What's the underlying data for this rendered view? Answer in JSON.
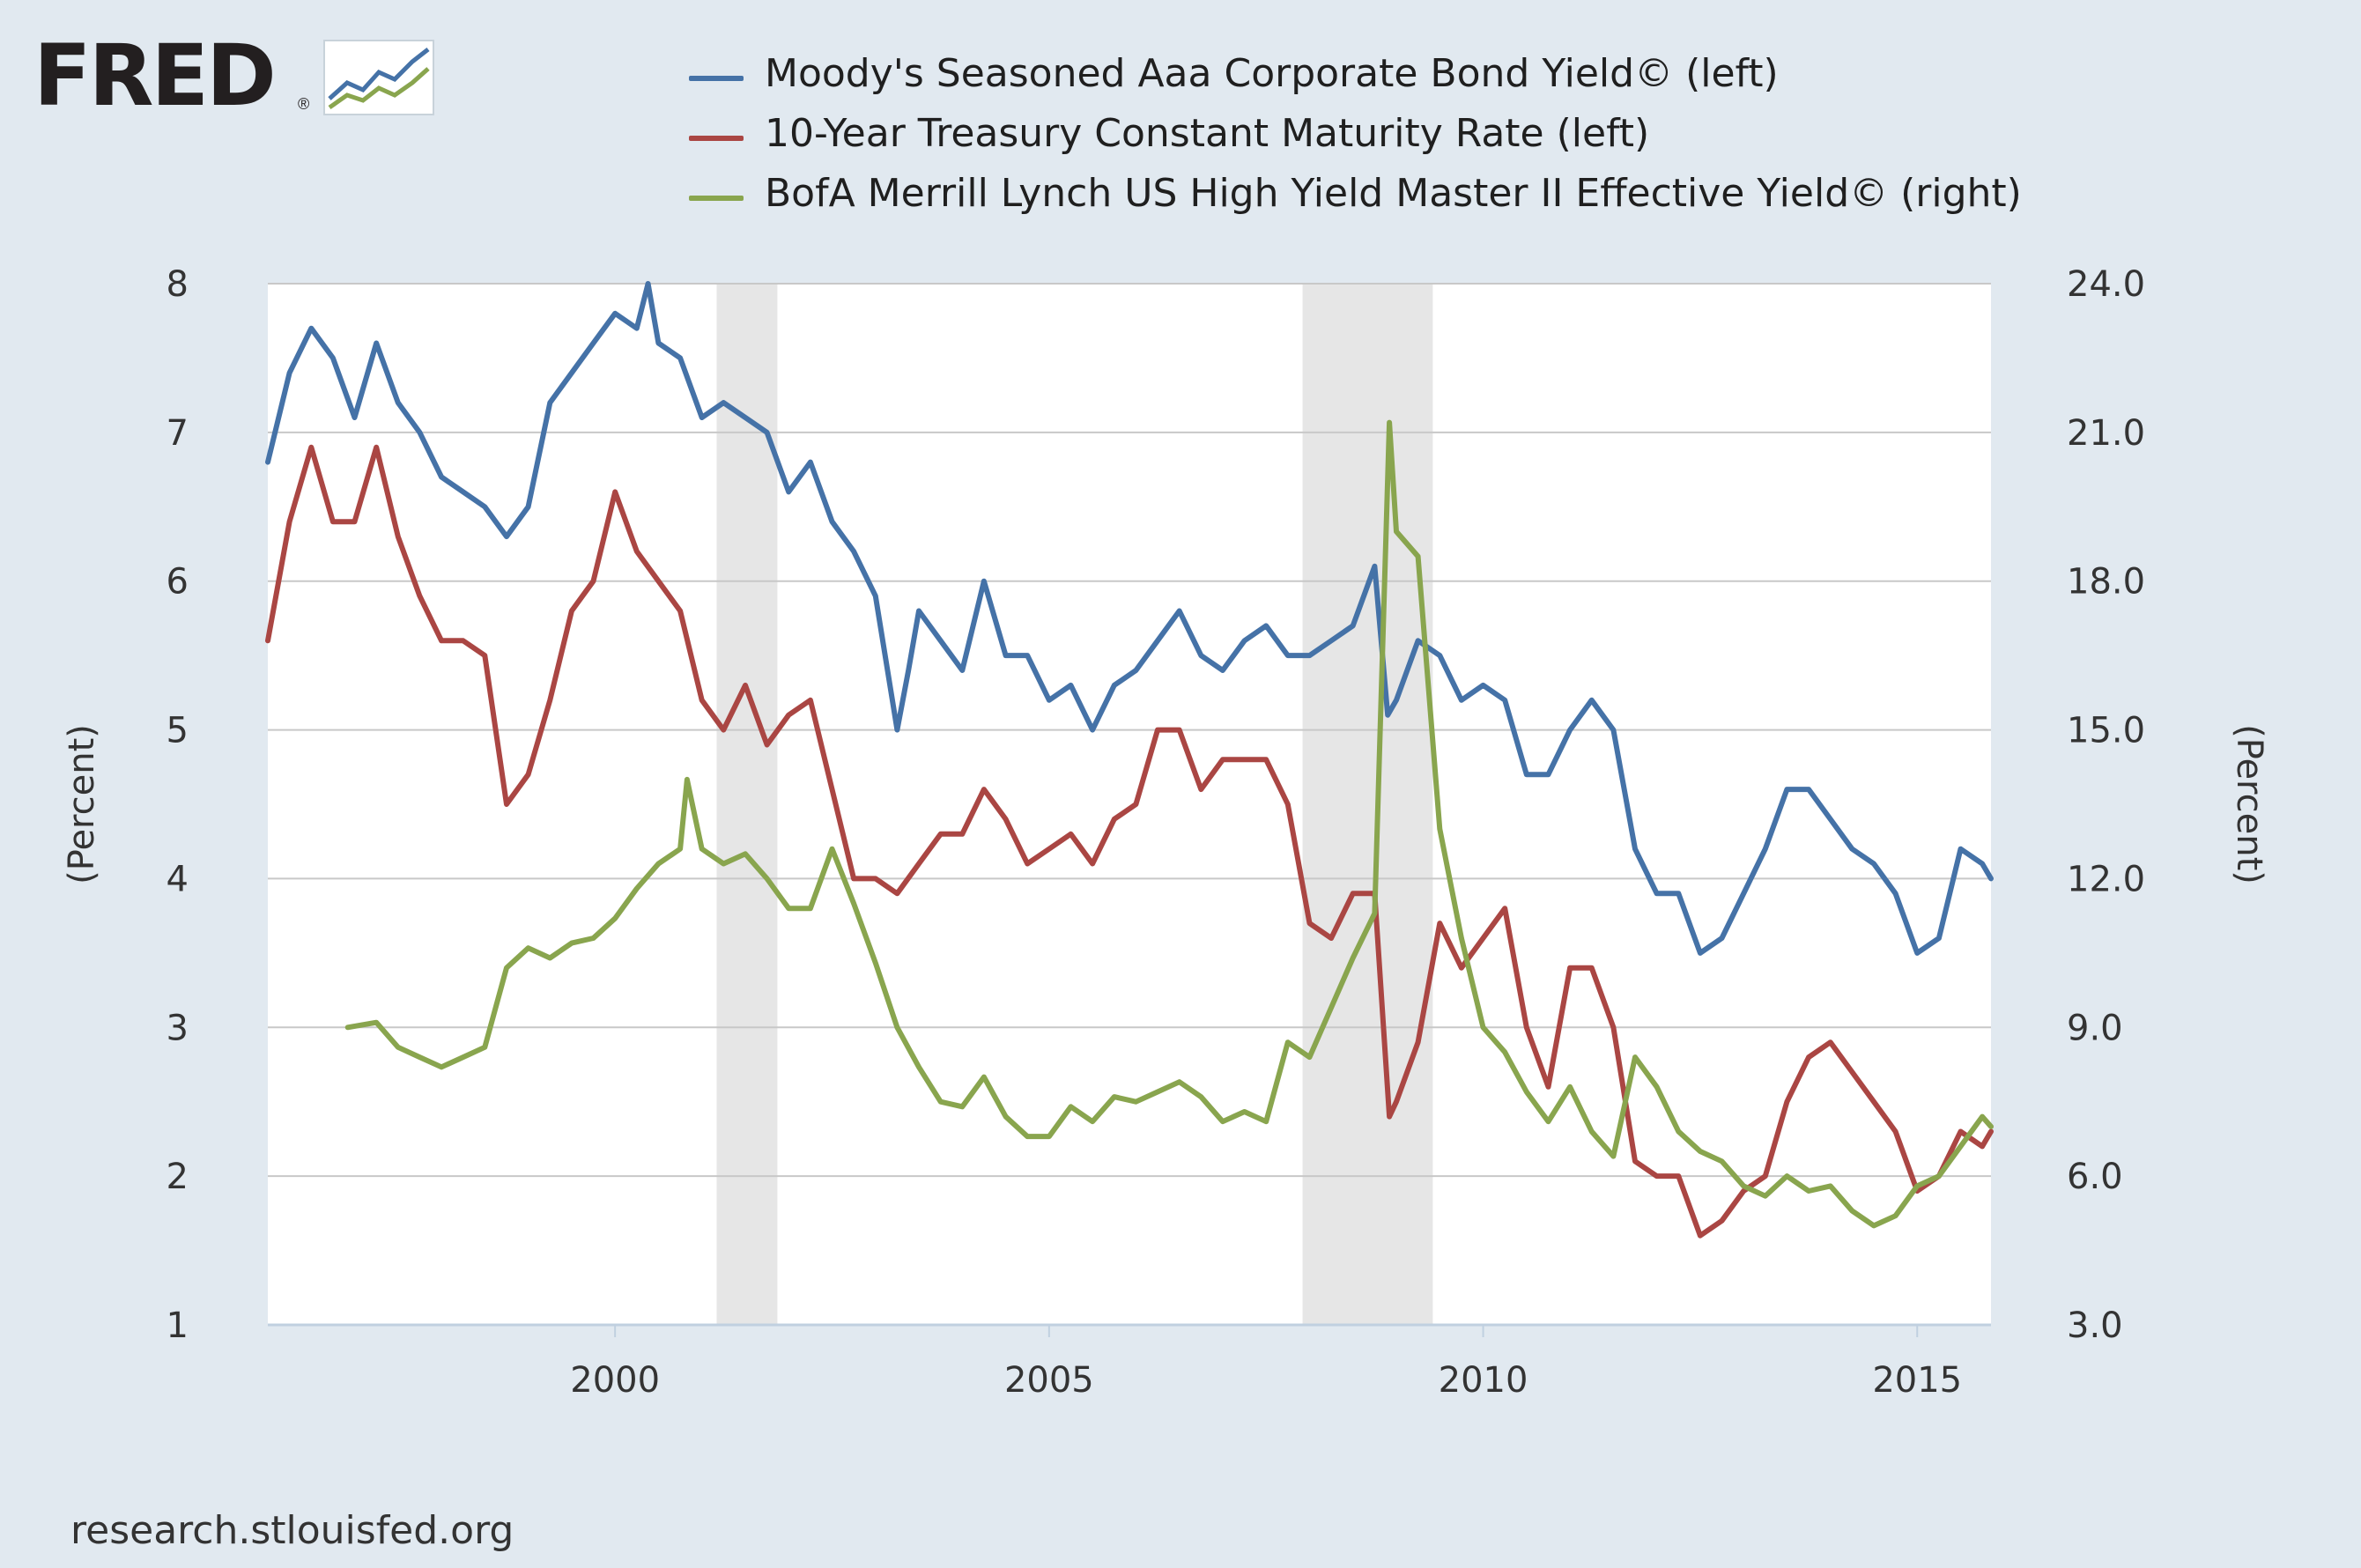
{
  "brand": {
    "logo_text": "FRED",
    "registered_mark": "®",
    "logo": "fred-logo"
  },
  "source": "research.stlouisfed.org",
  "chart_data": {
    "type": "line",
    "left_axis": {
      "title": "(Percent)",
      "min": 1,
      "max": 8,
      "ticks": [
        1,
        2,
        3,
        4,
        5,
        6,
        7,
        8
      ],
      "tick_labels": [
        "1",
        "2",
        "3",
        "4",
        "5",
        "6",
        "7",
        "8"
      ]
    },
    "right_axis": {
      "title": "(Percent)",
      "min": 3.0,
      "max": 24.0,
      "ticks": [
        3,
        6,
        9,
        12,
        15,
        18,
        21,
        24
      ],
      "tick_labels": [
        "3.0",
        "6.0",
        "9.0",
        "12.0",
        "15.0",
        "18.0",
        "21.0",
        "24.0"
      ]
    },
    "x_axis": {
      "min": 1996.0,
      "max": 2015.85,
      "ticks": [
        2000,
        2005,
        2010,
        2015
      ],
      "tick_labels": [
        "2000",
        "2005",
        "2010",
        "2015"
      ]
    },
    "grid": true,
    "legend_position": "top",
    "recessions": [
      {
        "start": 2001.17,
        "end": 2001.87
      },
      {
        "start": 2007.92,
        "end": 2009.42
      }
    ],
    "series": [
      {
        "name": "Moody's Seasoned Aaa Corporate Bond Yield© (left)",
        "axis": "left",
        "color": "#4572a7",
        "x": [
          1996.0,
          1996.25,
          1996.5,
          1996.75,
          1997.0,
          1997.25,
          1997.5,
          1997.75,
          1998.0,
          1998.25,
          1998.5,
          1998.75,
          1999.0,
          1999.25,
          1999.5,
          1999.75,
          2000.0,
          2000.25,
          2000.38,
          2000.5,
          2000.75,
          2001.0,
          2001.25,
          2001.5,
          2001.75,
          2002.0,
          2002.25,
          2002.5,
          2002.75,
          2003.0,
          2003.25,
          2003.38,
          2003.5,
          2003.75,
          2004.0,
          2004.25,
          2004.5,
          2004.75,
          2005.0,
          2005.25,
          2005.5,
          2005.75,
          2006.0,
          2006.25,
          2006.5,
          2006.75,
          2007.0,
          2007.25,
          2007.5,
          2007.75,
          2008.0,
          2008.25,
          2008.5,
          2008.75,
          2008.9,
          2009.0,
          2009.25,
          2009.5,
          2009.75,
          2010.0,
          2010.25,
          2010.5,
          2010.75,
          2011.0,
          2011.25,
          2011.5,
          2011.75,
          2012.0,
          2012.25,
          2012.5,
          2012.75,
          2013.0,
          2013.25,
          2013.5,
          2013.75,
          2014.0,
          2014.25,
          2014.5,
          2014.75,
          2015.0,
          2015.25,
          2015.5,
          2015.75,
          2015.85
        ],
        "y": [
          6.8,
          7.4,
          7.7,
          7.5,
          7.1,
          7.6,
          7.2,
          7.0,
          6.7,
          6.6,
          6.5,
          6.3,
          6.5,
          7.2,
          7.4,
          7.6,
          7.8,
          7.7,
          8.0,
          7.6,
          7.5,
          7.1,
          7.2,
          7.1,
          7.0,
          6.6,
          6.8,
          6.4,
          6.2,
          5.9,
          5.0,
          5.4,
          5.8,
          5.6,
          5.4,
          6.0,
          5.5,
          5.5,
          5.2,
          5.3,
          5.0,
          5.3,
          5.4,
          5.6,
          5.8,
          5.5,
          5.4,
          5.6,
          5.7,
          5.5,
          5.5,
          5.6,
          5.7,
          6.1,
          5.1,
          5.2,
          5.6,
          5.5,
          5.2,
          5.3,
          5.2,
          4.7,
          4.7,
          5.0,
          5.2,
          5.0,
          4.2,
          3.9,
          3.9,
          3.5,
          3.6,
          3.9,
          4.2,
          4.6,
          4.6,
          4.4,
          4.2,
          4.1,
          3.9,
          3.5,
          3.6,
          4.2,
          4.1,
          4.0
        ]
      },
      {
        "name": "10-Year Treasury Constant Maturity Rate (left)",
        "axis": "left",
        "color": "#aa4643",
        "x": [
          1996.0,
          1996.25,
          1996.5,
          1996.75,
          1997.0,
          1997.25,
          1997.5,
          1997.75,
          1998.0,
          1998.25,
          1998.5,
          1998.75,
          1999.0,
          1999.25,
          1999.5,
          1999.75,
          2000.0,
          2000.25,
          2000.5,
          2000.75,
          2001.0,
          2001.25,
          2001.5,
          2001.75,
          2002.0,
          2002.25,
          2002.5,
          2002.75,
          2003.0,
          2003.25,
          2003.5,
          2003.75,
          2004.0,
          2004.25,
          2004.5,
          2004.75,
          2005.0,
          2005.25,
          2005.5,
          2005.75,
          2006.0,
          2006.25,
          2006.5,
          2006.75,
          2007.0,
          2007.25,
          2007.5,
          2007.75,
          2008.0,
          2008.25,
          2008.5,
          2008.75,
          2008.92,
          2009.0,
          2009.25,
          2009.5,
          2009.75,
          2010.0,
          2010.25,
          2010.5,
          2010.75,
          2011.0,
          2011.25,
          2011.5,
          2011.75,
          2012.0,
          2012.25,
          2012.5,
          2012.75,
          2013.0,
          2013.25,
          2013.5,
          2013.75,
          2014.0,
          2014.25,
          2014.5,
          2014.75,
          2015.0,
          2015.25,
          2015.5,
          2015.75,
          2015.85
        ],
        "y": [
          5.6,
          6.4,
          6.9,
          6.4,
          6.4,
          6.9,
          6.3,
          5.9,
          5.6,
          5.6,
          5.5,
          4.5,
          4.7,
          5.2,
          5.8,
          6.0,
          6.6,
          6.2,
          6.0,
          5.8,
          5.2,
          5.0,
          5.3,
          4.9,
          5.1,
          5.2,
          4.6,
          4.0,
          4.0,
          3.9,
          4.1,
          4.3,
          4.3,
          4.6,
          4.4,
          4.1,
          4.2,
          4.3,
          4.1,
          4.4,
          4.5,
          5.0,
          5.0,
          4.6,
          4.8,
          4.8,
          4.8,
          4.5,
          3.7,
          3.6,
          3.9,
          3.9,
          2.4,
          2.5,
          2.9,
          3.7,
          3.4,
          3.6,
          3.8,
          3.0,
          2.6,
          3.4,
          3.4,
          3.0,
          2.1,
          2.0,
          2.0,
          1.6,
          1.7,
          1.9,
          2.0,
          2.5,
          2.8,
          2.9,
          2.7,
          2.5,
          2.3,
          1.9,
          2.0,
          2.3,
          2.2,
          2.3
        ]
      },
      {
        "name": "BofA Merrill Lynch US High Yield Master II Effective Yield© (right)",
        "axis": "right",
        "color": "#89a54e",
        "x": [
          1996.92,
          1997.25,
          1997.5,
          1997.75,
          1998.0,
          1998.25,
          1998.5,
          1998.75,
          1999.0,
          1999.25,
          1999.5,
          1999.75,
          2000.0,
          2000.25,
          2000.5,
          2000.75,
          2000.83,
          2001.0,
          2001.25,
          2001.5,
          2001.75,
          2002.0,
          2002.25,
          2002.5,
          2002.75,
          2003.0,
          2003.25,
          2003.5,
          2003.75,
          2004.0,
          2004.25,
          2004.5,
          2004.75,
          2005.0,
          2005.25,
          2005.5,
          2005.75,
          2006.0,
          2006.25,
          2006.5,
          2006.75,
          2007.0,
          2007.25,
          2007.5,
          2007.75,
          2008.0,
          2008.25,
          2008.5,
          2008.75,
          2008.92,
          2009.0,
          2009.25,
          2009.5,
          2009.75,
          2010.0,
          2010.25,
          2010.5,
          2010.75,
          2011.0,
          2011.25,
          2011.5,
          2011.75,
          2012.0,
          2012.25,
          2012.5,
          2012.75,
          2013.0,
          2013.25,
          2013.5,
          2013.75,
          2014.0,
          2014.25,
          2014.5,
          2014.75,
          2015.0,
          2015.25,
          2015.5,
          2015.75,
          2015.85
        ],
        "y": [
          9.0,
          9.1,
          8.6,
          8.4,
          8.2,
          8.4,
          8.6,
          10.2,
          10.6,
          10.4,
          10.7,
          10.8,
          11.2,
          11.8,
          12.3,
          12.6,
          14.0,
          12.6,
          12.3,
          12.5,
          12.0,
          11.4,
          11.4,
          12.6,
          11.5,
          10.3,
          9.0,
          8.2,
          7.5,
          7.4,
          8.0,
          7.2,
          6.8,
          6.8,
          7.4,
          7.1,
          7.6,
          7.5,
          7.7,
          7.9,
          7.6,
          7.1,
          7.3,
          7.1,
          8.7,
          8.4,
          9.4,
          10.4,
          11.3,
          21.2,
          19.0,
          18.5,
          13.0,
          10.8,
          9.0,
          8.5,
          7.7,
          7.1,
          7.8,
          6.9,
          6.4,
          8.4,
          7.8,
          6.9,
          6.5,
          6.3,
          5.8,
          5.6,
          6.0,
          5.7,
          5.8,
          5.3,
          5.0,
          5.2,
          5.8,
          6.0,
          6.6,
          7.2,
          7.0
        ]
      }
    ]
  }
}
